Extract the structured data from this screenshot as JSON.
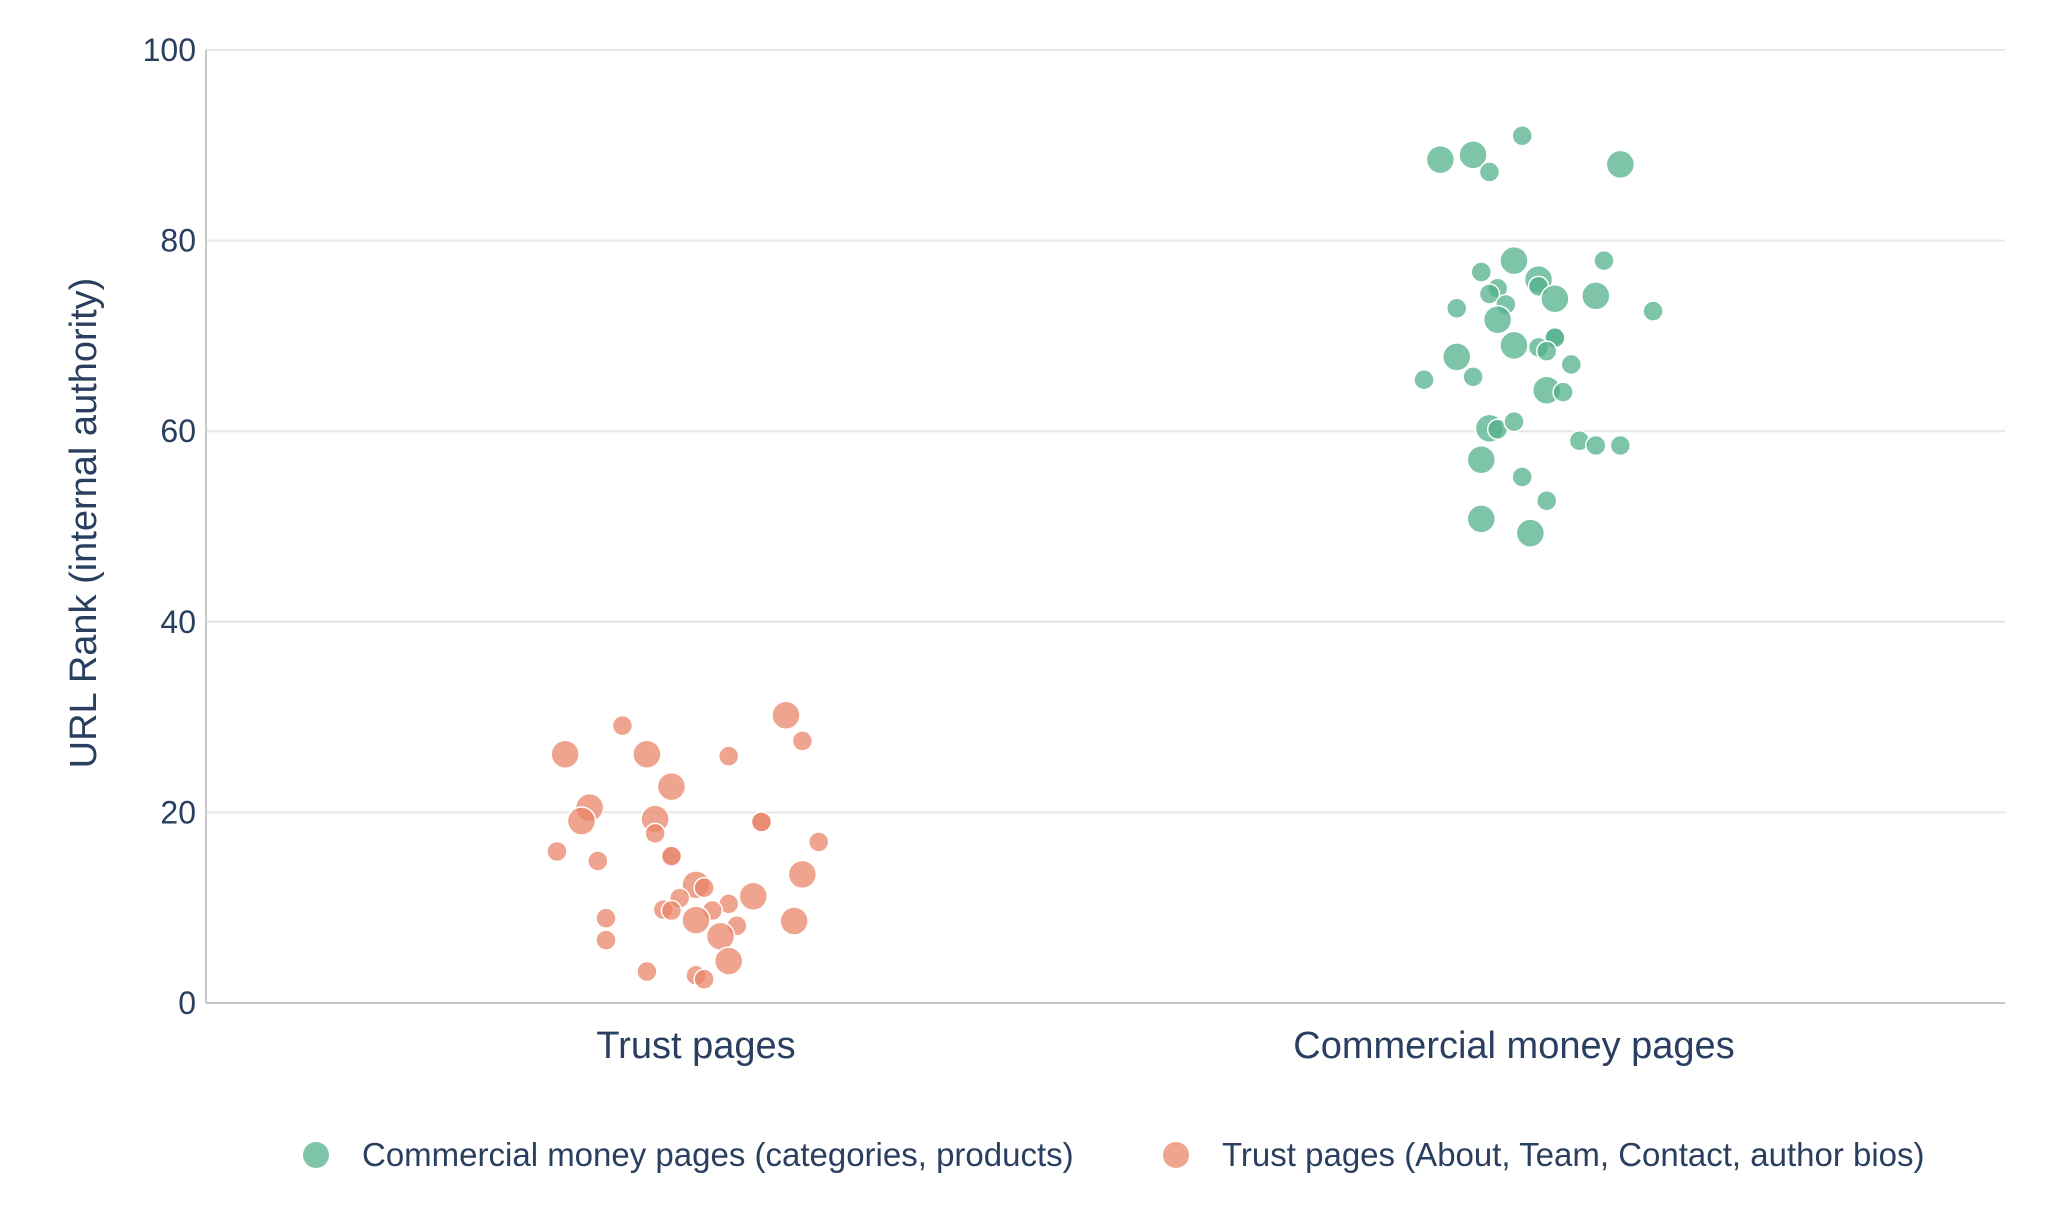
{
  "chart_data": {
    "type": "scatter",
    "title": "",
    "xlabel": "",
    "ylabel": "URL Rank (internal authority)",
    "ylim": [
      0,
      100
    ],
    "yticks": [
      0,
      20,
      40,
      60,
      80,
      100
    ],
    "categories": [
      "Trust pages",
      "Commercial money pages"
    ],
    "grid": true,
    "legend_position": "bottom",
    "series": [
      {
        "name": "Commercial money pages (categories, products)",
        "color": "#52b08c",
        "category": "Commercial money pages",
        "points": [
          {
            "jitter": -0.09,
            "y": 88.5,
            "size": "medium"
          },
          {
            "jitter": -0.05,
            "y": 89.0,
            "size": "medium"
          },
          {
            "jitter": -0.03,
            "y": 87.2,
            "size": "small"
          },
          {
            "jitter": 0.01,
            "y": 91.0,
            "size": "small"
          },
          {
            "jitter": 0.13,
            "y": 88.0,
            "size": "medium"
          },
          {
            "jitter": -0.04,
            "y": 76.7,
            "size": "small"
          },
          {
            "jitter": 0.0,
            "y": 77.9,
            "size": "medium"
          },
          {
            "jitter": 0.11,
            "y": 77.9,
            "size": "small"
          },
          {
            "jitter": -0.02,
            "y": 75.0,
            "size": "small"
          },
          {
            "jitter": 0.03,
            "y": 75.9,
            "size": "medium"
          },
          {
            "jitter": 0.03,
            "y": 75.2,
            "size": "small"
          },
          {
            "jitter": 0.05,
            "y": 73.9,
            "size": "medium"
          },
          {
            "jitter": 0.1,
            "y": 74.2,
            "size": "medium"
          },
          {
            "jitter": -0.03,
            "y": 74.4,
            "size": "small"
          },
          {
            "jitter": -0.07,
            "y": 72.9,
            "size": "small"
          },
          {
            "jitter": -0.01,
            "y": 73.3,
            "size": "small"
          },
          {
            "jitter": -0.02,
            "y": 71.7,
            "size": "medium"
          },
          {
            "jitter": 0.17,
            "y": 72.6,
            "size": "small"
          },
          {
            "jitter": 0.05,
            "y": 69.9,
            "size": "small"
          },
          {
            "jitter": 0.05,
            "y": 69.8,
            "size": "small"
          },
          {
            "jitter": 0.0,
            "y": 69.0,
            "size": "medium"
          },
          {
            "jitter": 0.03,
            "y": 68.8,
            "size": "small"
          },
          {
            "jitter": 0.04,
            "y": 68.4,
            "size": "small"
          },
          {
            "jitter": -0.07,
            "y": 67.8,
            "size": "medium"
          },
          {
            "jitter": 0.07,
            "y": 67.0,
            "size": "small"
          },
          {
            "jitter": -0.05,
            "y": 65.7,
            "size": "small"
          },
          {
            "jitter": -0.11,
            "y": 65.4,
            "size": "small"
          },
          {
            "jitter": 0.04,
            "y": 64.3,
            "size": "medium"
          },
          {
            "jitter": 0.06,
            "y": 64.1,
            "size": "small"
          },
          {
            "jitter": -0.03,
            "y": 60.3,
            "size": "medium"
          },
          {
            "jitter": -0.02,
            "y": 60.2,
            "size": "small"
          },
          {
            "jitter": 0.0,
            "y": 61.0,
            "size": "small"
          },
          {
            "jitter": 0.08,
            "y": 59.0,
            "size": "small"
          },
          {
            "jitter": 0.1,
            "y": 58.5,
            "size": "small"
          },
          {
            "jitter": 0.13,
            "y": 58.5,
            "size": "small"
          },
          {
            "jitter": -0.04,
            "y": 57.0,
            "size": "medium"
          },
          {
            "jitter": 0.01,
            "y": 55.2,
            "size": "small"
          },
          {
            "jitter": 0.04,
            "y": 52.7,
            "size": "small"
          },
          {
            "jitter": -0.04,
            "y": 50.8,
            "size": "medium"
          },
          {
            "jitter": 0.02,
            "y": 49.3,
            "size": "medium"
          }
        ]
      },
      {
        "name": "Trust pages (About, Team, Contact, author bios)",
        "color": "#e8866a",
        "category": "Trust pages",
        "points": [
          {
            "jitter": -0.09,
            "y": 29.1,
            "size": "small"
          },
          {
            "jitter": 0.11,
            "y": 30.2,
            "size": "medium"
          },
          {
            "jitter": -0.16,
            "y": 26.1,
            "size": "medium"
          },
          {
            "jitter": -0.06,
            "y": 26.1,
            "size": "medium"
          },
          {
            "jitter": 0.04,
            "y": 25.9,
            "size": "small"
          },
          {
            "jitter": 0.13,
            "y": 27.5,
            "size": "small"
          },
          {
            "jitter": -0.03,
            "y": 22.7,
            "size": "medium"
          },
          {
            "jitter": -0.13,
            "y": 20.5,
            "size": "medium"
          },
          {
            "jitter": -0.14,
            "y": 19.1,
            "size": "medium"
          },
          {
            "jitter": -0.05,
            "y": 19.3,
            "size": "medium"
          },
          {
            "jitter": -0.05,
            "y": 17.8,
            "size": "small"
          },
          {
            "jitter": 0.08,
            "y": 19.0,
            "size": "small"
          },
          {
            "jitter": 0.08,
            "y": 19.0,
            "size": "small"
          },
          {
            "jitter": 0.15,
            "y": 16.9,
            "size": "small"
          },
          {
            "jitter": -0.17,
            "y": 15.9,
            "size": "small"
          },
          {
            "jitter": -0.12,
            "y": 14.9,
            "size": "small"
          },
          {
            "jitter": -0.03,
            "y": 15.5,
            "size": "small"
          },
          {
            "jitter": -0.03,
            "y": 15.4,
            "size": "small"
          },
          {
            "jitter": 0.13,
            "y": 13.5,
            "size": "medium"
          },
          {
            "jitter": 0.0,
            "y": 12.4,
            "size": "medium"
          },
          {
            "jitter": 0.01,
            "y": 12.1,
            "size": "small"
          },
          {
            "jitter": -0.02,
            "y": 11.0,
            "size": "small"
          },
          {
            "jitter": 0.07,
            "y": 11.2,
            "size": "medium"
          },
          {
            "jitter": 0.04,
            "y": 10.4,
            "size": "small"
          },
          {
            "jitter": -0.04,
            "y": 9.8,
            "size": "small"
          },
          {
            "jitter": -0.03,
            "y": 9.7,
            "size": "small"
          },
          {
            "jitter": 0.02,
            "y": 9.7,
            "size": "small"
          },
          {
            "jitter": -0.11,
            "y": 8.9,
            "size": "small"
          },
          {
            "jitter": 0.0,
            "y": 8.7,
            "size": "medium"
          },
          {
            "jitter": 0.05,
            "y": 8.1,
            "size": "small"
          },
          {
            "jitter": 0.03,
            "y": 7.0,
            "size": "medium"
          },
          {
            "jitter": 0.12,
            "y": 8.6,
            "size": "medium"
          },
          {
            "jitter": -0.11,
            "y": 6.6,
            "size": "small"
          },
          {
            "jitter": 0.04,
            "y": 4.4,
            "size": "medium"
          },
          {
            "jitter": -0.06,
            "y": 3.3,
            "size": "small"
          },
          {
            "jitter": 0.0,
            "y": 2.9,
            "size": "small"
          },
          {
            "jitter": 0.01,
            "y": 2.5,
            "size": "small"
          }
        ]
      }
    ],
    "legend": [
      {
        "label": "Commercial money pages (categories, products)",
        "color": "#52b08c"
      },
      {
        "label": "Trust pages (About, Team, Contact, author bios)",
        "color": "#e8866a"
      }
    ]
  }
}
